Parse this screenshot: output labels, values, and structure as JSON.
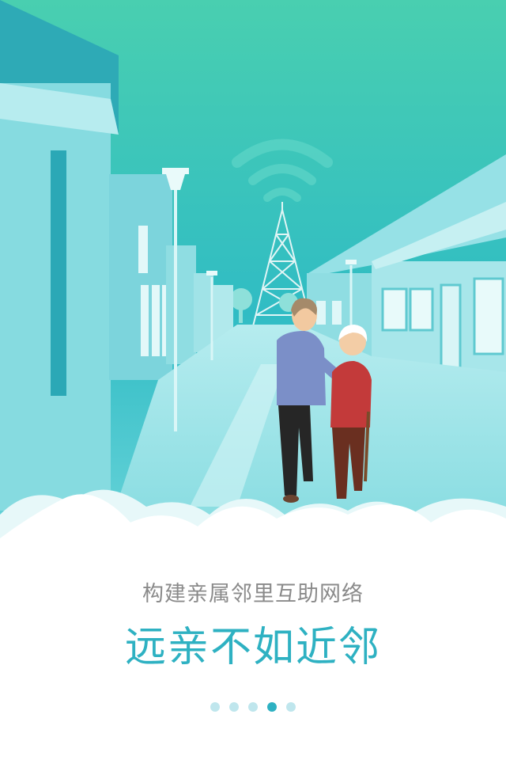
{
  "onboarding": {
    "illustration": "elderly-care-neighborhood-street",
    "subtitle": "构建亲属邻里互助网络",
    "title": "远亲不如近邻",
    "pager": {
      "total": 5,
      "active_index": 3
    }
  },
  "colors": {
    "accent": "#2eb1c2",
    "subtitle": "#8a8a8a",
    "dot_inactive": "#bfe6ed",
    "sky_top": "#4fd1b2",
    "sky_bottom": "#36c0c6"
  }
}
